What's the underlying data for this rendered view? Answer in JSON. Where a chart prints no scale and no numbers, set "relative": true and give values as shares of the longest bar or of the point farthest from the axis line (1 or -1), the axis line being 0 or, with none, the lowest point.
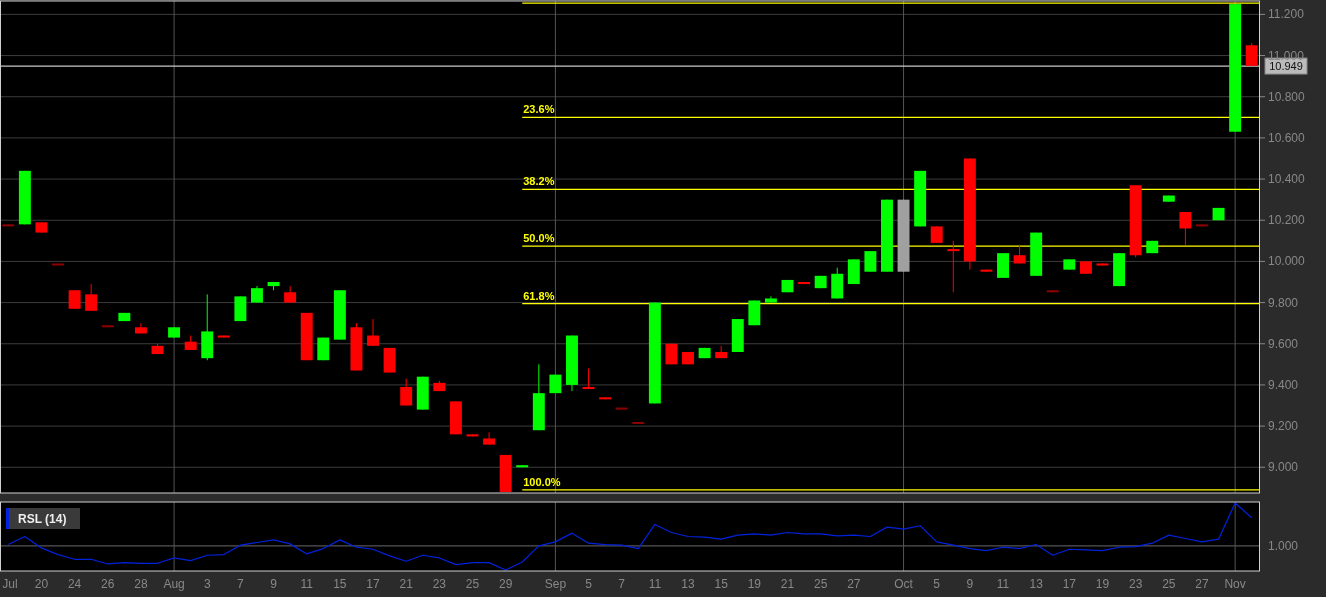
{
  "chart_data": [
    {
      "type": "candlestick",
      "categories": [
        "Jul",
        null,
        "20",
        null,
        "24",
        null,
        "26",
        null,
        "28",
        null,
        "Aug",
        null,
        "3",
        null,
        "7",
        null,
        "9",
        null,
        "11",
        null,
        "15",
        null,
        "17",
        null,
        "21",
        null,
        "23",
        null,
        "25",
        null,
        "29",
        null,
        null,
        "Sep",
        null,
        "5",
        null,
        "7",
        null,
        "11",
        null,
        "13",
        null,
        "15",
        null,
        "19",
        null,
        "21",
        null,
        "25",
        null,
        "27",
        null,
        null,
        "Oct",
        null,
        "5",
        null,
        "9",
        null,
        "11",
        null,
        "13",
        null,
        "17",
        null,
        "19",
        null,
        "23",
        null,
        "25",
        null,
        "27",
        null,
        "Nov",
        null
      ],
      "ohlc": [
        [
          10.18,
          10.18,
          10.17,
          10.17
        ],
        [
          10.18,
          10.44,
          10.18,
          10.44
        ],
        [
          10.19,
          10.19,
          10.14,
          10.14
        ],
        [
          9.99,
          9.99,
          9.98,
          9.98
        ],
        [
          9.86,
          9.86,
          9.77,
          9.77
        ],
        [
          9.84,
          9.89,
          9.76,
          9.76
        ],
        [
          9.69,
          9.69,
          9.68,
          9.68
        ],
        [
          9.71,
          9.75,
          9.71,
          9.75
        ],
        [
          9.68,
          9.7,
          9.65,
          9.65
        ],
        [
          9.59,
          9.6,
          9.55,
          9.55
        ],
        [
          9.63,
          9.68,
          9.63,
          9.68
        ],
        [
          9.61,
          9.64,
          9.57,
          9.57
        ],
        [
          9.53,
          9.84,
          9.52,
          9.66
        ],
        [
          9.64,
          9.64,
          9.63,
          9.63
        ],
        [
          9.71,
          9.83,
          9.71,
          9.83
        ],
        [
          9.8,
          9.88,
          9.8,
          9.87
        ],
        [
          9.88,
          9.9,
          9.86,
          9.9
        ],
        [
          9.85,
          9.88,
          9.8,
          9.8
        ],
        [
          9.75,
          9.75,
          9.52,
          9.52
        ],
        [
          9.52,
          9.63,
          9.52,
          9.63
        ],
        [
          9.62,
          9.86,
          9.62,
          9.86
        ],
        [
          9.68,
          9.7,
          9.47,
          9.47
        ],
        [
          9.64,
          9.72,
          9.59,
          9.59
        ],
        [
          9.58,
          9.58,
          9.46,
          9.46
        ],
        [
          9.39,
          9.43,
          9.3,
          9.3
        ],
        [
          9.28,
          9.44,
          9.28,
          9.44
        ],
        [
          9.41,
          9.42,
          9.37,
          9.37
        ],
        [
          9.32,
          9.32,
          9.16,
          9.16
        ],
        [
          9.16,
          9.16,
          9.15,
          9.15
        ],
        [
          9.14,
          9.17,
          9.11,
          9.11
        ],
        [
          9.06,
          9.06,
          8.88,
          8.88
        ],
        [
          9.0,
          9.01,
          9.0,
          9.01
        ],
        [
          9.18,
          9.5,
          9.18,
          9.36
        ],
        [
          9.36,
          9.45,
          9.36,
          9.45
        ],
        [
          9.4,
          9.64,
          9.37,
          9.64
        ],
        [
          9.39,
          9.48,
          9.38,
          9.38
        ],
        [
          9.34,
          9.34,
          9.33,
          9.33
        ],
        [
          9.29,
          9.29,
          9.28,
          9.28
        ],
        [
          9.22,
          9.22,
          9.21,
          9.21
        ],
        [
          9.31,
          9.8,
          9.31,
          9.8
        ],
        [
          9.6,
          9.6,
          9.5,
          9.5
        ],
        [
          9.56,
          9.56,
          9.5,
          9.5
        ],
        [
          9.53,
          9.58,
          9.53,
          9.58
        ],
        [
          9.56,
          9.59,
          9.53,
          9.53
        ],
        [
          9.56,
          9.72,
          9.56,
          9.72
        ],
        [
          9.69,
          9.81,
          9.69,
          9.81
        ],
        [
          9.8,
          9.83,
          9.8,
          9.82
        ],
        [
          9.85,
          9.91,
          9.85,
          9.91
        ],
        [
          9.9,
          9.9,
          9.89,
          9.89
        ],
        [
          9.87,
          9.93,
          9.87,
          9.93
        ],
        [
          9.82,
          9.97,
          9.82,
          9.94
        ],
        [
          9.89,
          10.01,
          9.89,
          10.01
        ],
        [
          9.95,
          10.05,
          9.95,
          10.05
        ],
        [
          9.95,
          10.3,
          9.95,
          10.3
        ],
        [
          9.95,
          10.3,
          9.95,
          10.3
        ],
        [
          10.17,
          10.44,
          10.17,
          10.44
        ],
        [
          10.17,
          10.17,
          10.09,
          10.09
        ],
        [
          10.06,
          10.1,
          9.85,
          10.05
        ],
        [
          10.5,
          10.5,
          9.96,
          10.0
        ],
        [
          9.96,
          9.96,
          9.95,
          9.95
        ],
        [
          9.92,
          10.04,
          9.92,
          10.04
        ],
        [
          10.03,
          10.08,
          9.99,
          9.99
        ],
        [
          9.93,
          10.14,
          9.93,
          10.14
        ],
        [
          9.86,
          9.86,
          9.85,
          9.85
        ],
        [
          9.96,
          10.01,
          9.96,
          10.01
        ],
        [
          10.0,
          10.0,
          9.94,
          9.94
        ],
        [
          9.99,
          9.99,
          9.98,
          9.98
        ],
        [
          9.88,
          10.04,
          9.88,
          10.04
        ],
        [
          10.37,
          10.37,
          10.02,
          10.03
        ],
        [
          10.04,
          10.1,
          10.04,
          10.1
        ],
        [
          10.29,
          10.32,
          10.29,
          10.32
        ],
        [
          10.24,
          10.24,
          10.08,
          10.16
        ],
        [
          10.18,
          10.18,
          10.17,
          10.17
        ],
        [
          10.2,
          10.26,
          10.2,
          10.26
        ],
        [
          10.63,
          11.25,
          10.63,
          11.25
        ],
        [
          11.05,
          11.06,
          10.95,
          10.95
        ]
      ],
      "colors": [
        "#8b0000",
        "#00ff00",
        "#ff0000",
        "#8b0000",
        "#ff0000",
        "#ff0000",
        "#8b0000",
        "#00ff00",
        "#ff0000",
        "#ff0000",
        "#00ff00",
        "#ff0000",
        "#00ff00",
        "#ff0000",
        "#00ff00",
        "#00ff00",
        "#00ff00",
        "#ff0000",
        "#ff0000",
        "#00ff00",
        "#00ff00",
        "#ff0000",
        "#ff0000",
        "#ff0000",
        "#ff0000",
        "#00ff00",
        "#ff0000",
        "#ff0000",
        "#ff0000",
        "#ff0000",
        "#ff0000",
        "#00ff00",
        "#00ff00",
        "#00ff00",
        "#00ff00",
        "#ff0000",
        "#ff0000",
        "#8b0000",
        "#8b0000",
        "#00ff00",
        "#ff0000",
        "#ff0000",
        "#00ff00",
        "#ff0000",
        "#00ff00",
        "#00ff00",
        "#00ff00",
        "#00ff00",
        "#ff0000",
        "#00ff00",
        "#00ff00",
        "#00ff00",
        "#00ff00",
        "#00ff00",
        "#a0a0a0",
        "#00ff00",
        "#ff0000",
        "#ff0000",
        "#ff0000",
        "#ff0000",
        "#00ff00",
        "#ff0000",
        "#00ff00",
        "#8b0000",
        "#00ff00",
        "#ff0000",
        "#ff0000",
        "#00ff00",
        "#ff0000",
        "#00ff00",
        "#00ff00",
        "#ff0000",
        "#8b0000",
        "#00ff00",
        "#00ff00",
        "#ff0000"
      ],
      "ylim": [
        8.875,
        11.265
      ],
      "yticks": [
        {
          "value": 9.0,
          "label": "9.000"
        },
        {
          "value": 9.2,
          "label": "9.200"
        },
        {
          "value": 9.4,
          "label": "9.400"
        },
        {
          "value": 9.6,
          "label": "9.600"
        },
        {
          "value": 9.8,
          "label": "9.800"
        },
        {
          "value": 10.0,
          "label": "10.000"
        },
        {
          "value": 10.2,
          "label": "10.200"
        },
        {
          "value": 10.4,
          "label": "10.400"
        },
        {
          "value": 10.6,
          "label": "10.600"
        },
        {
          "value": 10.8,
          "label": "10.800"
        },
        {
          "value": 11.0,
          "label": "11.000"
        },
        {
          "value": 11.2,
          "label": "11.200"
        }
      ],
      "grid": "y",
      "tick_labels": "y",
      "ref_lines": [
        {
          "axis": "y",
          "value": 11.255,
          "color": "#ffff00"
        },
        {
          "axis": "y",
          "value": 10.7,
          "color": "#ffff00"
        },
        {
          "axis": "y",
          "value": 10.35,
          "color": "#ffff00"
        },
        {
          "axis": "y",
          "value": 10.074,
          "color": "#ffff00"
        },
        {
          "axis": "y",
          "value": 9.795,
          "color": "#ffff00"
        },
        {
          "axis": "y",
          "value": 8.89,
          "color": "#ffff00"
        },
        {
          "axis": "y",
          "value": 10.949,
          "label": "10.949",
          "color": "#c8c8c8"
        },
        {
          "axis": "x",
          "value": "Aug",
          "color": "#555555"
        },
        {
          "axis": "x",
          "value": "Sep",
          "color": "#555555"
        },
        {
          "axis": "x",
          "value": "Oct",
          "color": "#555555"
        },
        {
          "axis": "x",
          "value": "Nov",
          "color": "#555555"
        }
      ],
      "annotations": [
        {
          "text": "23.6%",
          "y": 10.7
        },
        {
          "text": "38.2%",
          "y": 10.35
        },
        {
          "text": "50.0%",
          "y": 10.074
        },
        {
          "text": "61.8%",
          "y": 9.795
        },
        {
          "text": "100.0%",
          "y": 8.89
        }
      ]
    },
    {
      "type": "line",
      "categories": [
        "Jul",
        null,
        "20",
        null,
        "24",
        null,
        "26",
        null,
        "28",
        null,
        "Aug",
        null,
        "3",
        null,
        "7",
        null,
        "9",
        null,
        "11",
        null,
        "15",
        null,
        "17",
        null,
        "21",
        null,
        "23",
        null,
        "25",
        null,
        "29",
        null,
        null,
        "Sep",
        null,
        "5",
        null,
        "7",
        null,
        "11",
        null,
        "13",
        null,
        "15",
        null,
        "19",
        null,
        "21",
        null,
        "25",
        null,
        "27",
        null,
        null,
        "Oct",
        null,
        "5",
        null,
        "9",
        null,
        "11",
        null,
        "13",
        null,
        "17",
        null,
        "19",
        null,
        "23",
        null,
        "25",
        null,
        "27",
        null,
        "Nov",
        null
      ],
      "relative": true,
      "series": [
        {
          "name": "RSL (14)",
          "color": "#0022dd",
          "values": [
            0.38,
            0.5,
            0.33,
            0.23,
            0.16,
            0.16,
            0.09,
            0.11,
            0.1,
            0.1,
            0.18,
            0.14,
            0.22,
            0.23,
            0.37,
            0.41,
            0.45,
            0.39,
            0.24,
            0.32,
            0.45,
            0.34,
            0.31,
            0.21,
            0.13,
            0.22,
            0.18,
            0.08,
            0.11,
            0.11,
            0,
            0.12,
            0.36,
            0.42,
            0.55,
            0.4,
            0.38,
            0.37,
            0.32,
            0.68,
            0.56,
            0.5,
            0.49,
            0.46,
            0.52,
            0.54,
            0.52,
            0.56,
            0.54,
            0.54,
            0.51,
            0.52,
            0.5,
            0.64,
            0.61,
            0.66,
            0.42,
            0.37,
            0.32,
            0.29,
            0.34,
            0.32,
            0.38,
            0.22,
            0.31,
            0.3,
            0.29,
            0.34,
            0.35,
            0.4,
            0.52,
            0.47,
            0.42,
            0.46,
            1,
            0.78
          ]
        }
      ],
      "legend": "top left",
      "tick_labels": "x",
      "annotations": [
        "1.000"
      ],
      "ref_lines": [
        {
          "axis": "y",
          "value": 0.36,
          "color": "#555555"
        },
        {
          "axis": "x",
          "value": "Aug",
          "color": "#555555"
        },
        {
          "axis": "x",
          "value": "Sep",
          "color": "#555555"
        },
        {
          "axis": "x",
          "value": "Oct",
          "color": "#555555"
        },
        {
          "axis": "x",
          "value": "Nov",
          "color": "#555555"
        }
      ]
    }
  ]
}
